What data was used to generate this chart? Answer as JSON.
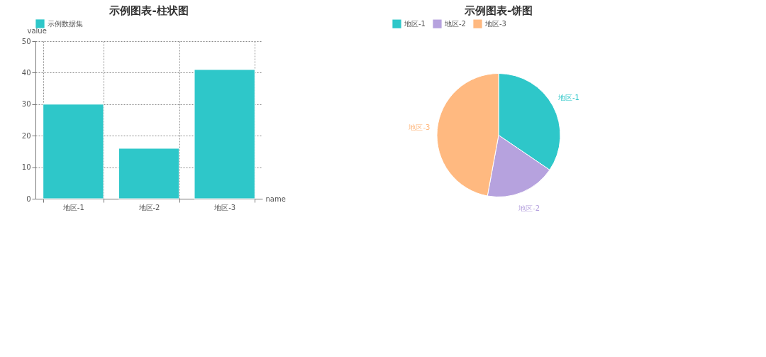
{
  "chart_data": [
    {
      "type": "bar",
      "title": "示例图表-柱状图",
      "xlabel": "name",
      "ylabel": "value",
      "categories": [
        "地区-1",
        "地区-2",
        "地区-3"
      ],
      "series": [
        {
          "name": "示例数据集",
          "color": "#2ec7c9",
          "values": [
            30,
            16,
            41
          ]
        }
      ],
      "ylim": [
        0,
        50
      ],
      "yticks": [
        0,
        10,
        20,
        30,
        40,
        50
      ],
      "grid": true,
      "legend": "top"
    },
    {
      "type": "pie",
      "title": "示例图表-饼图",
      "categories": [
        "地区-1",
        "地区-2",
        "地区-3"
      ],
      "values": [
        34.5,
        18.4,
        47.1
      ],
      "colors": [
        "#2ec7c9",
        "#b6a2de",
        "#ffb980"
      ],
      "legend": "top"
    }
  ]
}
